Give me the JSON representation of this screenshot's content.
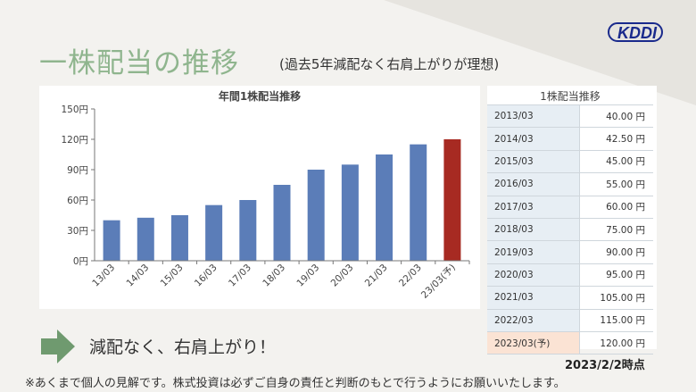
{
  "slide": {
    "title": "一株配当の推移",
    "subtitle": "(過去5年減配なく右肩上がりが理想)",
    "logo_text": "KDDI",
    "conclusion": "減配なく、右肩上がり！",
    "as_of": "2023/2/2時点",
    "disclaimer": "※あくまで個人の見解です。株式投資は必ずご自身の責任と判断のもとで行うようにお願いいたします。"
  },
  "colors": {
    "title_green": "#8fb58e",
    "bar_blue": "#5b7db8",
    "bar_forecast": "#a72a22",
    "arrow_green": "#6f9a6f",
    "forecast_row": "#fbe3d4",
    "year_cell": "#e7eef4",
    "logo_blue": "#1a2a8c"
  },
  "chart_data": {
    "type": "bar",
    "title": "年間1株配当推移",
    "categories": [
      "13/03",
      "14/03",
      "15/03",
      "16/03",
      "17/03",
      "18/03",
      "19/03",
      "20/03",
      "21/03",
      "22/03",
      "23/03(予)"
    ],
    "values": [
      40,
      42.5,
      45,
      55,
      60,
      75,
      90,
      95,
      105,
      115,
      120
    ],
    "forecast_index": 10,
    "ylim": [
      0,
      150
    ],
    "yticks": [
      "0円",
      "30円",
      "60円",
      "90円",
      "120円",
      "150円"
    ],
    "grid": false,
    "legend": "none"
  },
  "dividend_table": {
    "title": "1株配当推移",
    "rows": [
      {
        "year": "2013/03",
        "value": "40.00 円"
      },
      {
        "year": "2014/03",
        "value": "42.50 円"
      },
      {
        "year": "2015/03",
        "value": "45.00 円"
      },
      {
        "year": "2016/03",
        "value": "55.00 円"
      },
      {
        "year": "2017/03",
        "value": "60.00 円"
      },
      {
        "year": "2018/03",
        "value": "75.00 円"
      },
      {
        "year": "2019/03",
        "value": "90.00 円"
      },
      {
        "year": "2020/03",
        "value": "95.00 円"
      },
      {
        "year": "2021/03",
        "value": "105.00 円"
      },
      {
        "year": "2022/03",
        "value": "115.00 円"
      },
      {
        "year": "2023/03(予)",
        "value": "120.00 円",
        "forecast": true
      }
    ]
  }
}
